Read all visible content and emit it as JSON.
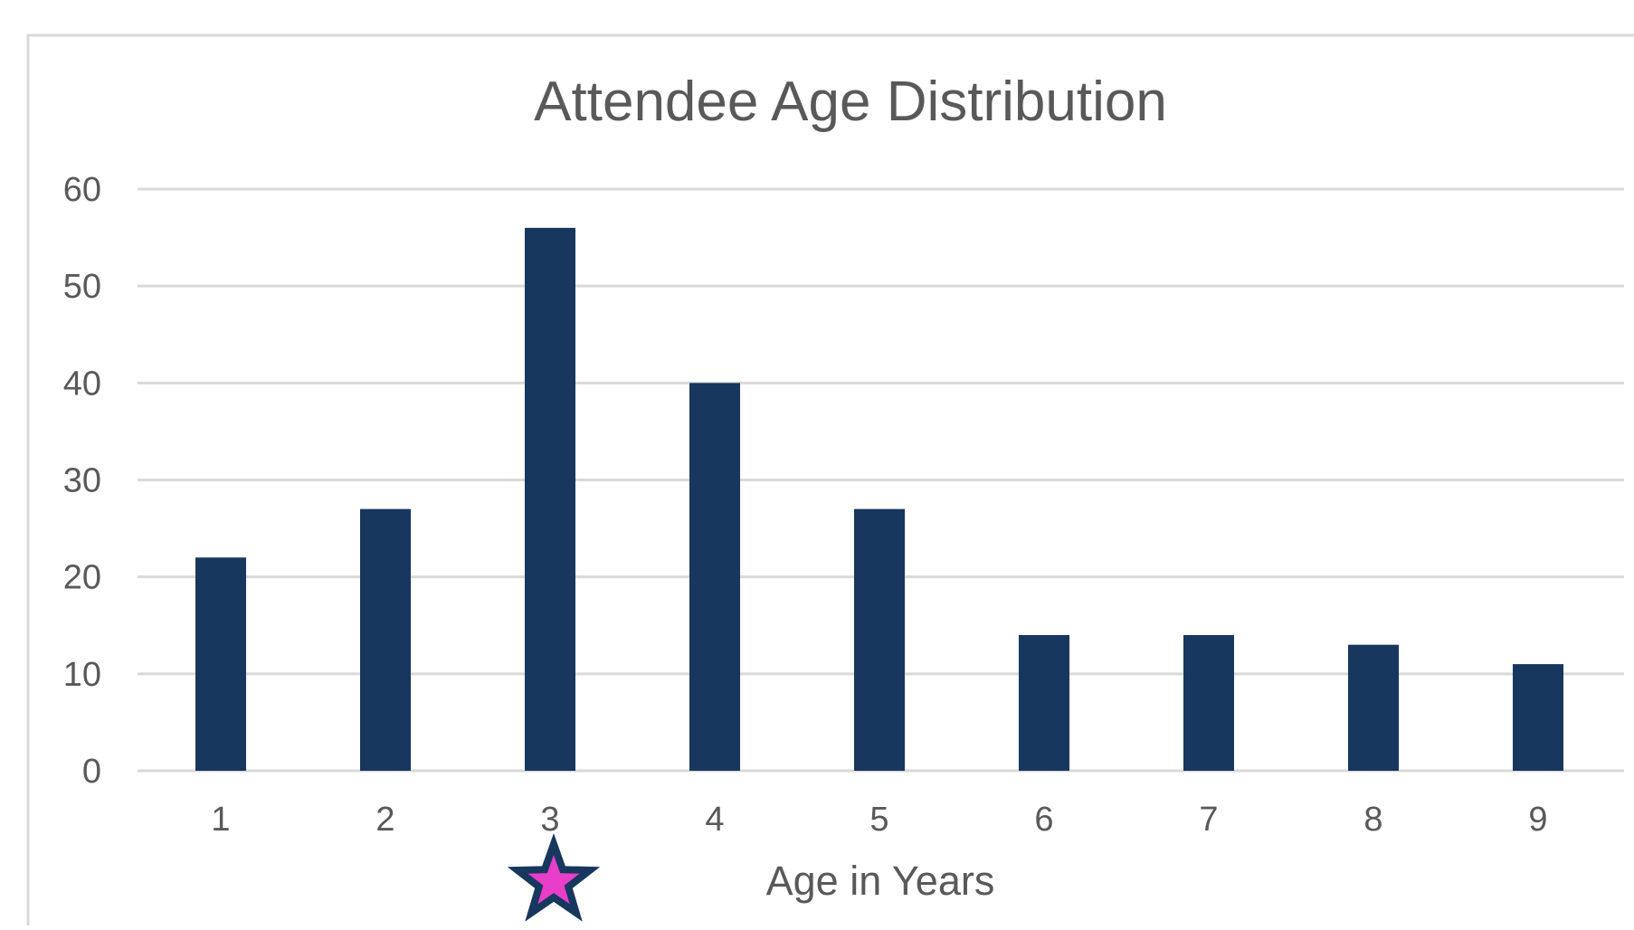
{
  "chart_data": {
    "type": "bar",
    "title": "Attendee Age Distribution",
    "xlabel": "Age in Years",
    "ylabel": "",
    "categories": [
      "1",
      "2",
      "3",
      "4",
      "5",
      "6",
      "7",
      "8",
      "9"
    ],
    "values": [
      22,
      27,
      56,
      40,
      27,
      14,
      14,
      13,
      11
    ],
    "yticks": [
      "0",
      "10",
      "20",
      "30",
      "40",
      "50",
      "60"
    ],
    "ylim": [
      0,
      60
    ],
    "grid": true,
    "legend": "none",
    "marker": {
      "icon": "star-icon",
      "category": "3",
      "fill": "#e83ec8",
      "stroke": "#17375e"
    }
  },
  "colors": {
    "bar": "#17375e",
    "grid": "#d9d9d9",
    "axis_text": "#595959",
    "title_text": "#595959",
    "frame": "#d9d9d9"
  }
}
